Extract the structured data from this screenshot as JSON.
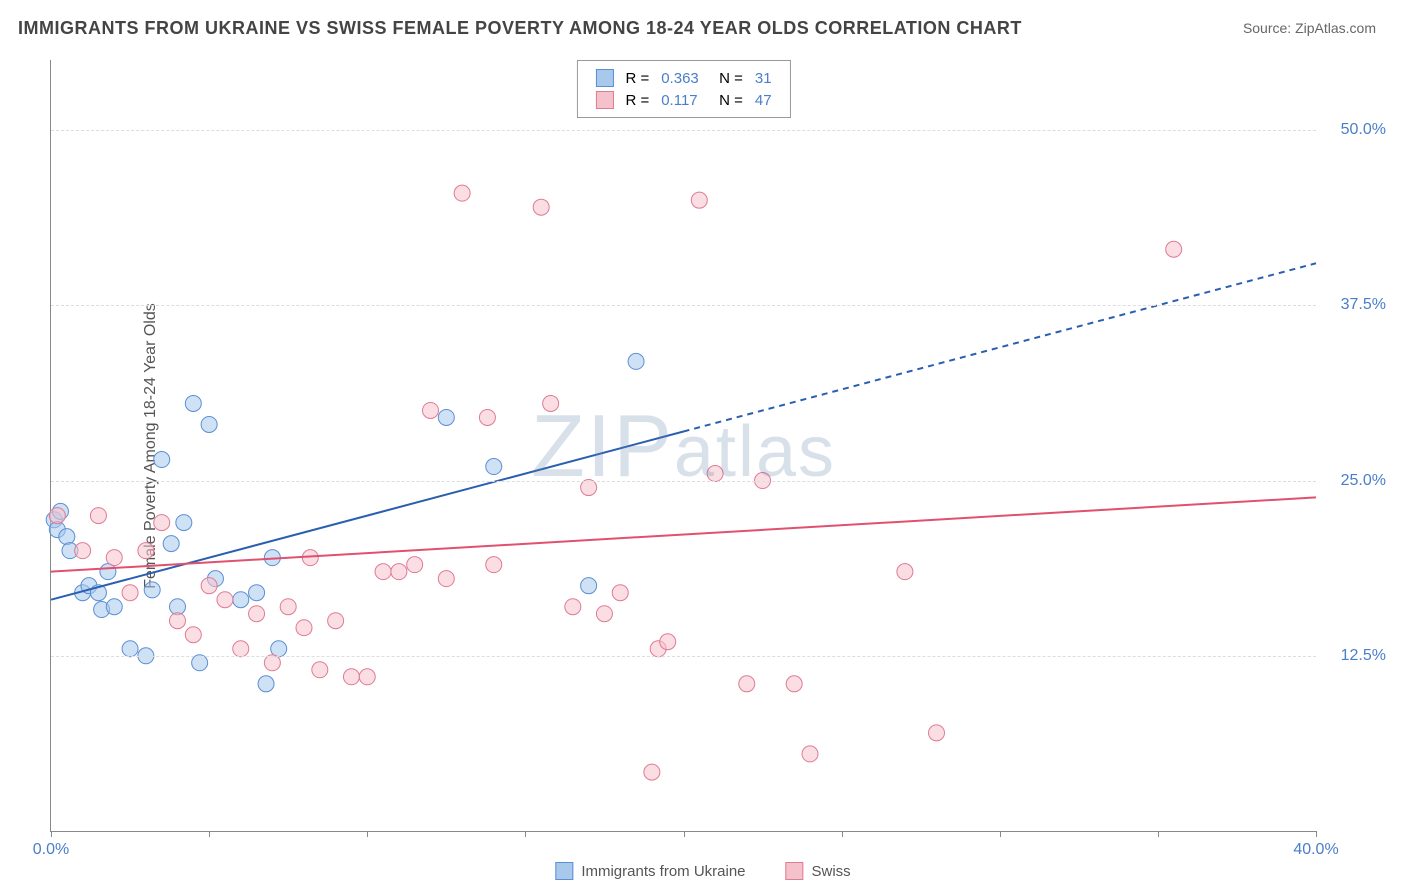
{
  "title": "IMMIGRANTS FROM UKRAINE VS SWISS FEMALE POVERTY AMONG 18-24 YEAR OLDS CORRELATION CHART",
  "source": "Source: ZipAtlas.com",
  "ylabel": "Female Poverty Among 18-24 Year Olds",
  "watermark": "ZIPatlas",
  "chart": {
    "type": "scatter",
    "xlim": [
      0,
      40
    ],
    "ylim": [
      0,
      55
    ],
    "x_ticks": [
      0,
      5,
      10,
      15,
      20,
      25,
      30,
      35,
      40
    ],
    "x_tick_labels": {
      "0": "0.0%",
      "40": "40.0%"
    },
    "y_gridlines": [
      12.5,
      25.0,
      37.5,
      50.0
    ],
    "y_tick_labels": [
      "12.5%",
      "25.0%",
      "37.5%",
      "50.0%"
    ],
    "background_color": "#ffffff",
    "grid_color": "#dddddd",
    "axis_color": "#888888",
    "tick_label_color": "#4a7ec9",
    "marker_radius": 8,
    "marker_opacity": 0.55,
    "series": [
      {
        "name": "Immigrants from Ukraine",
        "color_fill": "#a8c8ec",
        "color_stroke": "#5b8fd4",
        "R": "0.363",
        "N": "31",
        "regression": {
          "x1": 0,
          "y1": 16.5,
          "x2": 20,
          "y2": 28.5,
          "dash_x2": 40,
          "dash_y2": 40.5,
          "color": "#2a5fb0",
          "width": 2
        },
        "points": [
          [
            0.1,
            22.2
          ],
          [
            0.2,
            21.5
          ],
          [
            0.3,
            22.8
          ],
          [
            0.5,
            21.0
          ],
          [
            0.6,
            20.0
          ],
          [
            1.0,
            17.0
          ],
          [
            1.2,
            17.5
          ],
          [
            1.5,
            17.0
          ],
          [
            1.6,
            15.8
          ],
          [
            1.8,
            18.5
          ],
          [
            2.0,
            16.0
          ],
          [
            2.5,
            13.0
          ],
          [
            3.0,
            12.5
          ],
          [
            3.2,
            17.2
          ],
          [
            3.5,
            26.5
          ],
          [
            3.8,
            20.5
          ],
          [
            4.0,
            16.0
          ],
          [
            4.2,
            22.0
          ],
          [
            4.5,
            30.5
          ],
          [
            4.7,
            12.0
          ],
          [
            5.0,
            29.0
          ],
          [
            5.2,
            18.0
          ],
          [
            6.0,
            16.5
          ],
          [
            6.5,
            17.0
          ],
          [
            6.8,
            10.5
          ],
          [
            7.0,
            19.5
          ],
          [
            7.2,
            13.0
          ],
          [
            12.5,
            29.5
          ],
          [
            14.0,
            26.0
          ],
          [
            17.0,
            17.5
          ],
          [
            18.5,
            33.5
          ]
        ]
      },
      {
        "name": "Swiss",
        "color_fill": "#f5c2cc",
        "color_stroke": "#e07b94",
        "R": "0.117",
        "N": "47",
        "regression": {
          "x1": 0,
          "y1": 18.5,
          "x2": 40,
          "y2": 23.8,
          "color": "#e0506f",
          "width": 2
        },
        "points": [
          [
            0.2,
            22.5
          ],
          [
            1.0,
            20.0
          ],
          [
            1.5,
            22.5
          ],
          [
            2.0,
            19.5
          ],
          [
            2.5,
            17.0
          ],
          [
            3.0,
            20.0
          ],
          [
            3.5,
            22.0
          ],
          [
            4.0,
            15.0
          ],
          [
            4.5,
            14.0
          ],
          [
            5.0,
            17.5
          ],
          [
            5.5,
            16.5
          ],
          [
            6.0,
            13.0
          ],
          [
            6.5,
            15.5
          ],
          [
            7.0,
            12.0
          ],
          [
            7.5,
            16.0
          ],
          [
            8.0,
            14.5
          ],
          [
            8.5,
            11.5
          ],
          [
            9.0,
            15.0
          ],
          [
            9.5,
            11.0
          ],
          [
            10.0,
            11.0
          ],
          [
            10.5,
            18.5
          ],
          [
            11.0,
            18.5
          ],
          [
            11.5,
            19.0
          ],
          [
            12.0,
            30.0
          ],
          [
            13.0,
            45.5
          ],
          [
            13.8,
            29.5
          ],
          [
            14.0,
            19.0
          ],
          [
            15.5,
            44.5
          ],
          [
            15.8,
            30.5
          ],
          [
            16.5,
            16.0
          ],
          [
            17.0,
            24.5
          ],
          [
            17.5,
            15.5
          ],
          [
            18.0,
            17.0
          ],
          [
            19.0,
            4.2
          ],
          [
            19.2,
            13.0
          ],
          [
            20.5,
            45.0
          ],
          [
            21.0,
            25.5
          ],
          [
            22.0,
            10.5
          ],
          [
            22.5,
            25.0
          ],
          [
            23.5,
            10.5
          ],
          [
            24.0,
            5.5
          ],
          [
            27.0,
            18.5
          ],
          [
            28.0,
            7.0
          ],
          [
            35.5,
            41.5
          ],
          [
            19.5,
            13.5
          ],
          [
            12.5,
            18.0
          ],
          [
            8.2,
            19.5
          ]
        ]
      }
    ]
  },
  "legend_bottom": [
    {
      "label": "Immigrants from Ukraine",
      "fill": "#a8c8ec",
      "stroke": "#5b8fd4"
    },
    {
      "label": "Swiss",
      "fill": "#f5c2cc",
      "stroke": "#e07b94"
    }
  ]
}
